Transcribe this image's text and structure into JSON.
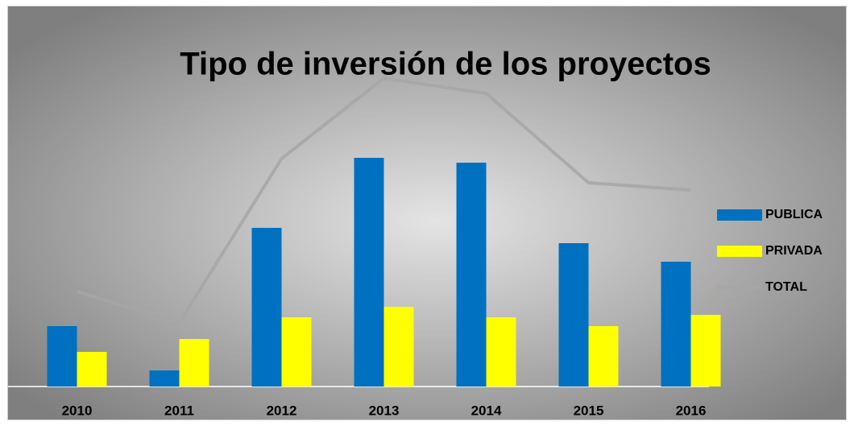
{
  "chart_data": {
    "type": "bar-line",
    "title": "Tipo de inversión de los proyectos",
    "categories": [
      "2010",
      "2011",
      "2012",
      "2013",
      "2014",
      "2015",
      "2016"
    ],
    "series": [
      {
        "name": "PUBLICA",
        "type": "bar",
        "color": "#0070c0",
        "values": [
          75,
          20,
          197,
          284,
          278,
          178,
          155
        ]
      },
      {
        "name": "PRIVADA",
        "type": "bar",
        "color": "#ffff00",
        "values": [
          43,
          59,
          86,
          99,
          86,
          75,
          89
        ]
      },
      {
        "name": "TOTAL",
        "type": "line",
        "color": "#a6a6a6",
        "values": [
          118,
          79,
          283,
          383,
          364,
          253,
          244
        ]
      }
    ],
    "ylim": [
      0,
      400
    ],
    "legend": "right"
  }
}
